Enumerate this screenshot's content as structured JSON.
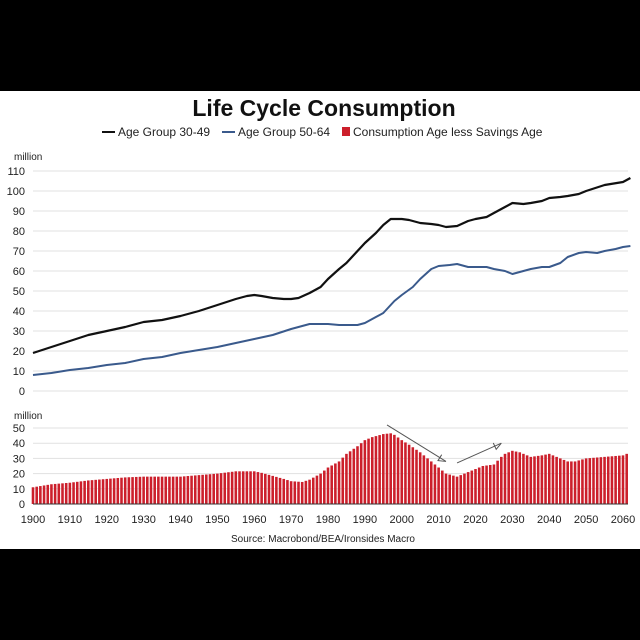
{
  "chart_data": [
    {
      "type": "line",
      "title": "Life Cycle Consumption",
      "unit_label": "million",
      "ylim": [
        0,
        110
      ],
      "yticks": [
        0,
        10,
        20,
        30,
        40,
        50,
        60,
        70,
        80,
        90,
        100,
        110
      ],
      "xlim": [
        1900,
        2060
      ],
      "grid": true,
      "legend_position": "top",
      "series": [
        {
          "name": "Age Group 30-49",
          "color": "#111111",
          "x": [
            1900,
            1905,
            1910,
            1915,
            1920,
            1925,
            1930,
            1935,
            1940,
            1945,
            1950,
            1955,
            1958,
            1960,
            1962,
            1965,
            1968,
            1970,
            1972,
            1975,
            1978,
            1980,
            1983,
            1985,
            1988,
            1990,
            1993,
            1995,
            1997,
            1998,
            2000,
            2002,
            2005,
            2008,
            2010,
            2012,
            2015,
            2018,
            2020,
            2023,
            2025,
            2028,
            2030,
            2033,
            2035,
            2038,
            2040,
            2043,
            2045,
            2048,
            2050,
            2055,
            2060,
            2062
          ],
          "values": [
            19,
            22,
            25,
            28,
            30,
            32,
            34.5,
            35.5,
            37.5,
            40,
            43,
            46,
            47.5,
            48,
            47.5,
            46.5,
            46,
            46,
            46.5,
            49,
            52,
            56,
            61,
            64,
            70,
            74,
            79,
            83,
            86,
            86,
            86,
            85.5,
            84,
            83.5,
            83,
            82,
            82.5,
            85,
            86,
            87,
            89,
            92,
            94,
            93.5,
            94,
            95,
            96.5,
            97,
            97.5,
            98.5,
            100,
            103,
            104.5,
            106.5
          ]
        },
        {
          "name": "Age Group 50-64",
          "color": "#3a5a8c",
          "x": [
            1900,
            1905,
            1910,
            1915,
            1920,
            1925,
            1930,
            1935,
            1940,
            1945,
            1950,
            1955,
            1960,
            1965,
            1970,
            1975,
            1978,
            1980,
            1983,
            1985,
            1988,
            1990,
            1993,
            1995,
            1998,
            2000,
            2003,
            2005,
            2008,
            2010,
            2013,
            2015,
            2018,
            2020,
            2023,
            2025,
            2028,
            2030,
            2033,
            2035,
            2038,
            2040,
            2043,
            2045,
            2048,
            2050,
            2053,
            2055,
            2058,
            2060,
            2062
          ],
          "values": [
            8,
            9,
            10.5,
            11.5,
            13,
            14,
            16,
            17,
            19,
            20.5,
            22,
            24,
            26,
            28,
            31,
            33.5,
            33.5,
            33.5,
            33,
            33,
            33,
            34,
            37,
            39,
            45,
            48,
            52,
            56,
            61,
            62.5,
            63,
            63.5,
            62,
            62,
            62,
            61,
            60,
            58.5,
            60,
            61,
            62,
            62,
            64,
            67,
            69,
            69.5,
            69,
            70,
            71,
            72,
            72.5
          ]
        }
      ]
    },
    {
      "type": "bar",
      "title": "Consumption Age less Savings Age",
      "unit_label": "million",
      "color": "#cc1f2b",
      "ylim": [
        0,
        50
      ],
      "yticks": [
        0,
        10,
        20,
        30,
        40,
        50
      ],
      "x_range": [
        1900,
        2060
      ],
      "xticks": [
        1900,
        1910,
        1920,
        1930,
        1940,
        1950,
        1960,
        1970,
        1980,
        1990,
        2000,
        2010,
        2020,
        2030,
        2040,
        2050,
        2060
      ],
      "x": [
        1900,
        1905,
        1910,
        1915,
        1920,
        1925,
        1930,
        1935,
        1940,
        1945,
        1950,
        1955,
        1960,
        1962,
        1965,
        1968,
        1970,
        1973,
        1975,
        1978,
        1980,
        1983,
        1985,
        1988,
        1990,
        1992,
        1995,
        1997,
        1998,
        2000,
        2002,
        2005,
        2008,
        2010,
        2012,
        2015,
        2018,
        2020,
        2022,
        2025,
        2027,
        2028,
        2030,
        2032,
        2035,
        2038,
        2040,
        2042,
        2045,
        2047,
        2050,
        2055,
        2060,
        2061
      ],
      "values": [
        11,
        13,
        14,
        15.5,
        16.5,
        17.5,
        18,
        18,
        18,
        19,
        20,
        21.5,
        21.5,
        20.5,
        18.5,
        16.5,
        15,
        14.5,
        16,
        20,
        24,
        28,
        33,
        38,
        42,
        44,
        46,
        46.5,
        45.5,
        42,
        39,
        34,
        28,
        24,
        20,
        18,
        21,
        23,
        25,
        26,
        31,
        33,
        35,
        34,
        31,
        32,
        33,
        31,
        28,
        28,
        30,
        31,
        32,
        33
      ],
      "annotations": [
        "arrow descending from ~1997 peak to ~2012 trough",
        "arrow ascending from ~2015 to ~2027"
      ]
    }
  ],
  "source": "Source: Macrobond/BEA/Ironsides Macro"
}
